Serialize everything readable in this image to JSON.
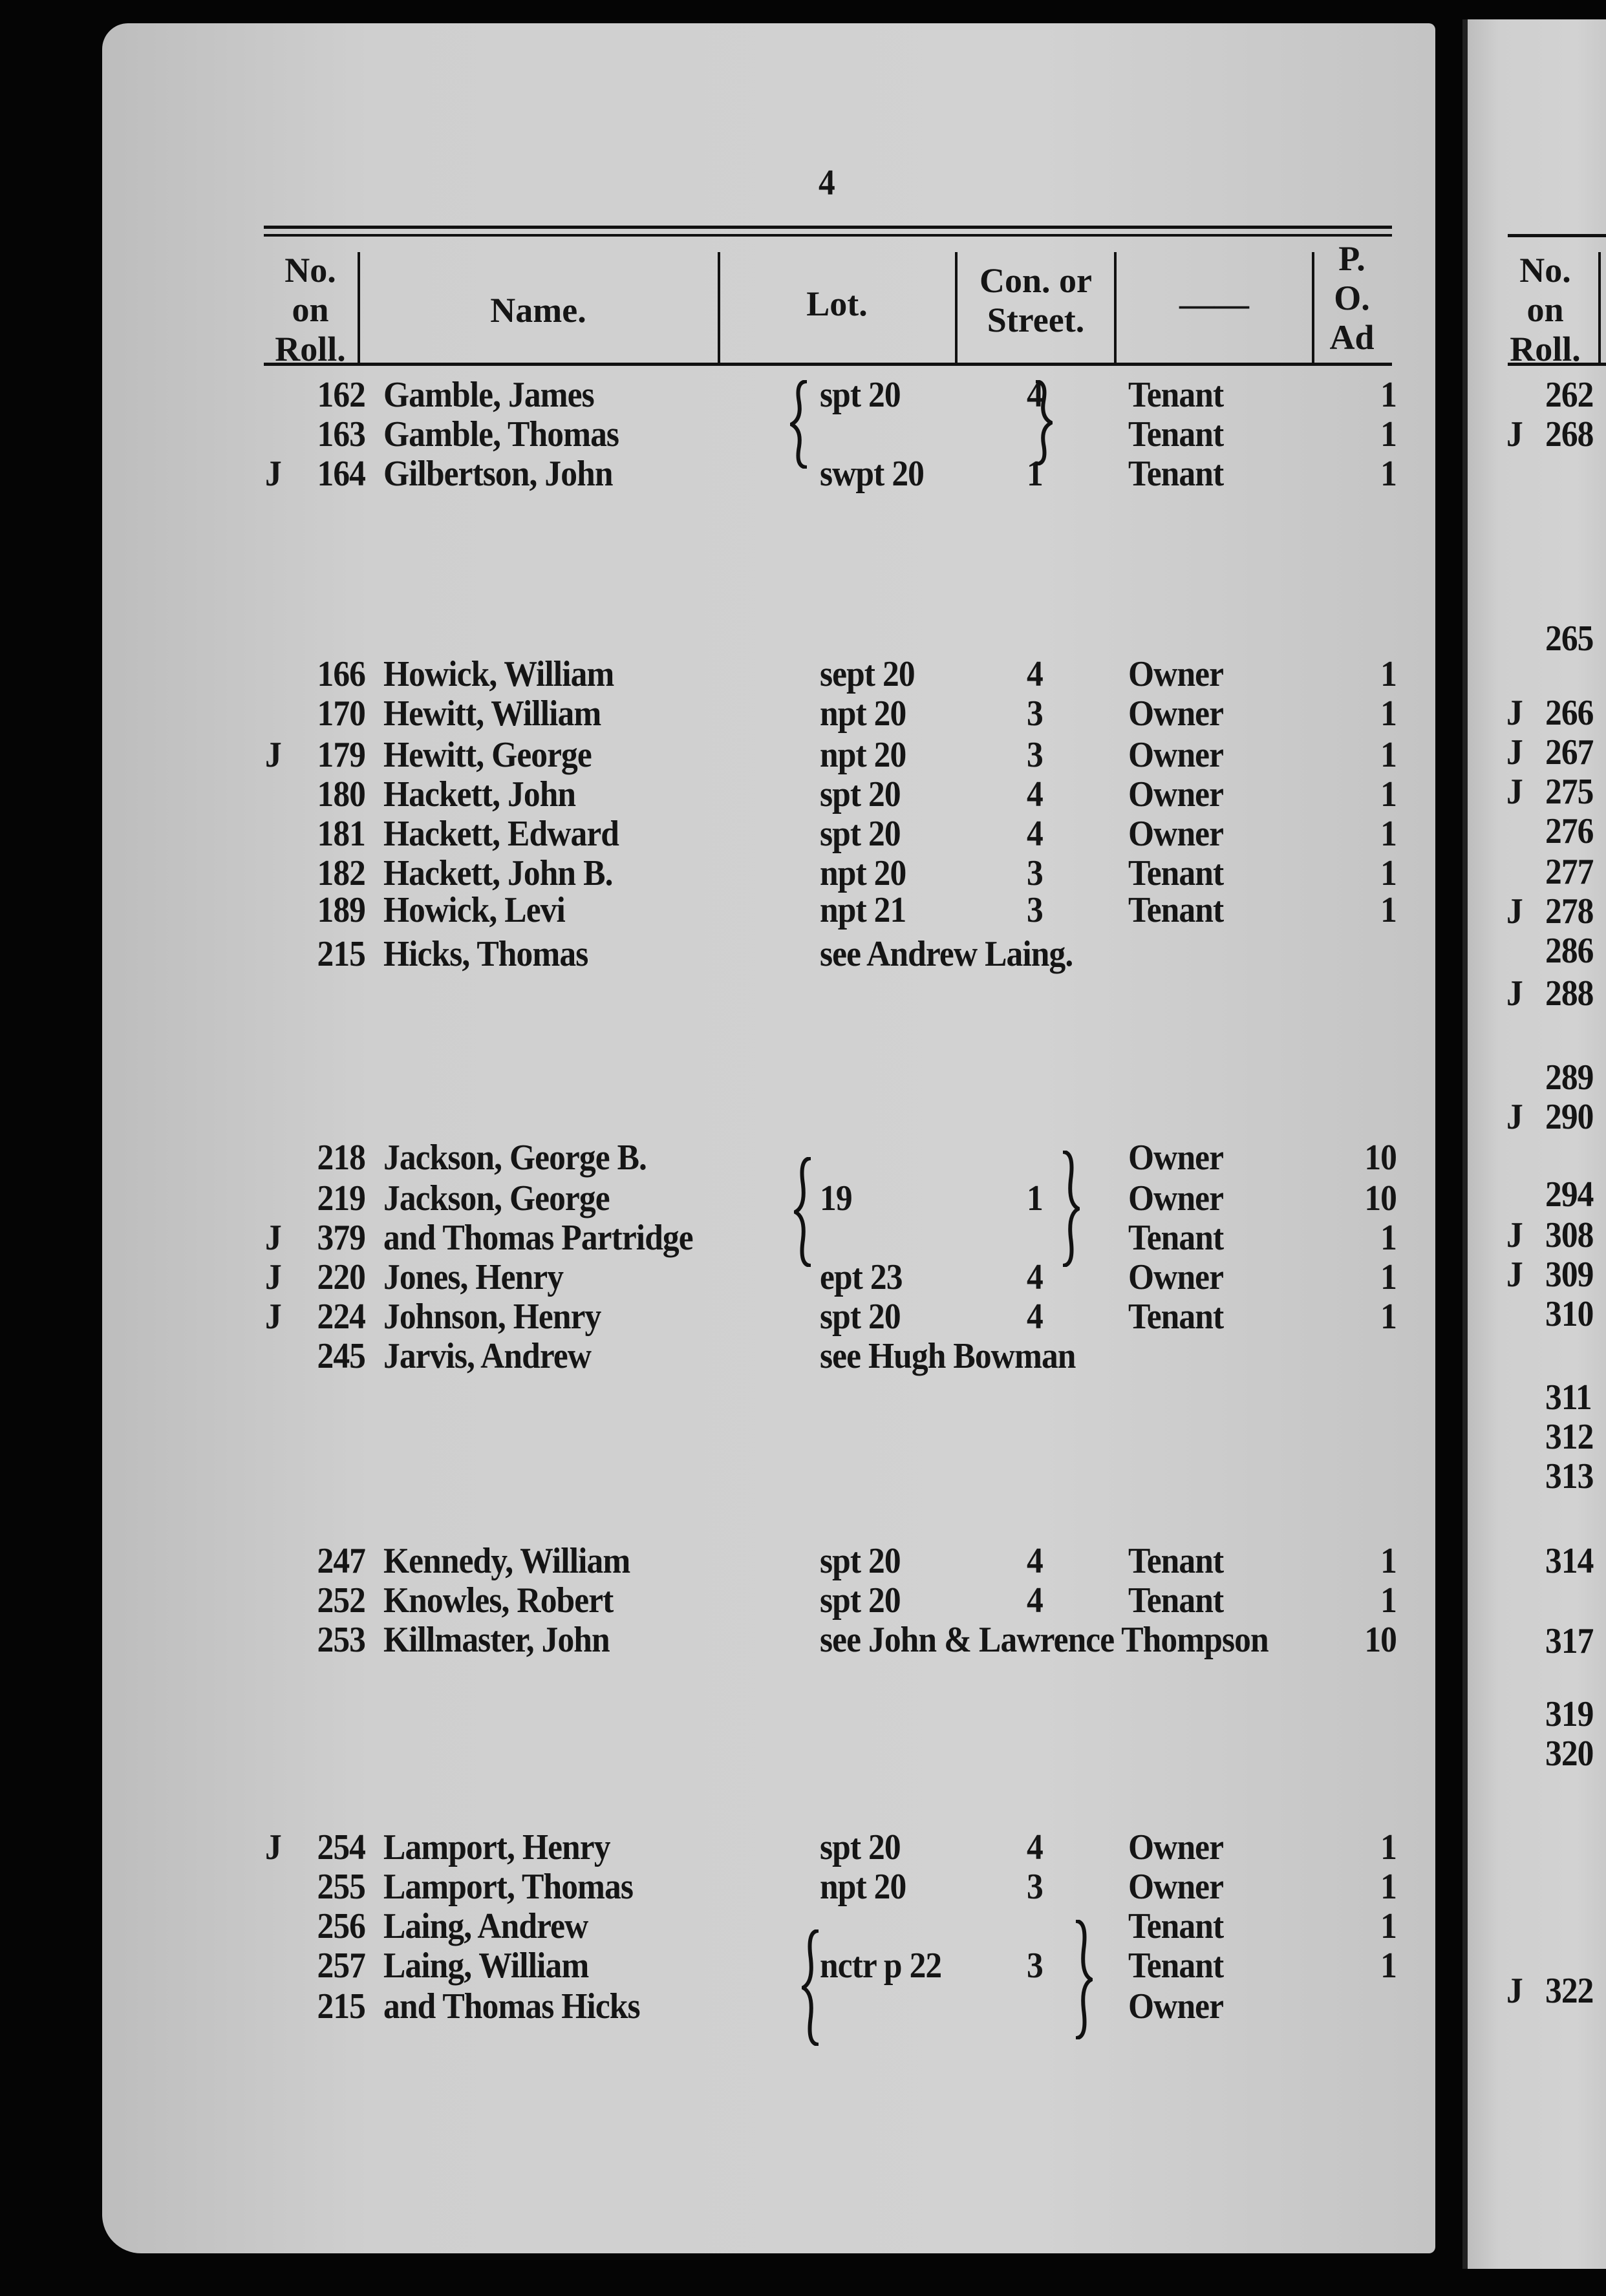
{
  "page_number": "4",
  "headers": {
    "no_on_roll": "No.\non\nRoll.",
    "name": "Name.",
    "lot": "Lot.",
    "con": "Con. or\nStreet.",
    "blank": "——",
    "po": "P.\nO.\nAd"
  },
  "rows": [
    {
      "j": "",
      "no": "162",
      "name": "Gamble, James",
      "lot": "spt 20",
      "con": "4",
      "status": "Tenant",
      "po": "1"
    },
    {
      "j": "",
      "no": "163",
      "name": "Gamble, Thomas",
      "lot": "",
      "con": "",
      "status": "Tenant",
      "po": "1"
    },
    {
      "j": "J",
      "no": "164",
      "name": "Gilbertson, John",
      "lot": "swpt 20",
      "con": "1",
      "status": "Tenant",
      "po": "1"
    },
    {
      "j": "",
      "no": "166",
      "name": "Howick, William",
      "lot": "sept 20",
      "con": "4",
      "status": "Owner",
      "po": "1"
    },
    {
      "j": "",
      "no": "170",
      "name": "Hewitt, William",
      "lot": "npt 20",
      "con": "3",
      "status": "Owner",
      "po": "1"
    },
    {
      "j": "J",
      "no": "179",
      "name": "Hewitt, George",
      "lot": "npt 20",
      "con": "3",
      "status": "Owner",
      "po": "1"
    },
    {
      "j": "",
      "no": "180",
      "name": "Hackett, John",
      "lot": "spt 20",
      "con": "4",
      "status": "Owner",
      "po": "1"
    },
    {
      "j": "",
      "no": "181",
      "name": "Hackett, Edward",
      "lot": "spt 20",
      "con": "4",
      "status": "Owner",
      "po": "1"
    },
    {
      "j": "",
      "no": "182",
      "name": "Hackett, John B.",
      "lot": "npt 20",
      "con": "3",
      "status": "Tenant",
      "po": "1"
    },
    {
      "j": "",
      "no": "189",
      "name": "Howick, Levi",
      "lot": "npt 21",
      "con": "3",
      "status": "Tenant",
      "po": "1"
    },
    {
      "j": "",
      "no": "215",
      "name": "Hicks, Thomas",
      "lot": "see Andrew Laing.",
      "con": "",
      "status": "",
      "po": ""
    },
    {
      "j": "",
      "no": "218",
      "name": "Jackson, George B.",
      "lot": "",
      "con": "",
      "status": "Owner",
      "po": "10"
    },
    {
      "j": "",
      "no": "219",
      "name": "Jackson, George",
      "lot": "19",
      "con": "1",
      "status": "Owner",
      "po": "10"
    },
    {
      "j": "J",
      "no": "379",
      "name": "and Thomas Partridge",
      "lot": "",
      "con": "",
      "status": "Tenant",
      "po": "1"
    },
    {
      "j": "J",
      "no": "220",
      "name": "Jones, Henry",
      "lot": "ept 23",
      "con": "4",
      "status": "Owner",
      "po": "1"
    },
    {
      "j": "J",
      "no": "224",
      "name": "Johnson, Henry",
      "lot": "spt 20",
      "con": "4",
      "status": "Tenant",
      "po": "1"
    },
    {
      "j": "",
      "no": "245",
      "name": "Jarvis, Andrew",
      "lot": "see Hugh Bowman",
      "con": "",
      "status": "",
      "po": ""
    },
    {
      "j": "",
      "no": "247",
      "name": "Kennedy, William",
      "lot": "spt 20",
      "con": "4",
      "status": "Tenant",
      "po": "1"
    },
    {
      "j": "",
      "no": "252",
      "name": "Knowles, Robert",
      "lot": "spt 20",
      "con": "4",
      "status": "Tenant",
      "po": "1"
    },
    {
      "j": "",
      "no": "253",
      "name": "Killmaster, John",
      "lot": "see John & Lawrence Thompson",
      "con": "",
      "status": "",
      "po": "10"
    },
    {
      "j": "J",
      "no": "254",
      "name": "Lamport, Henry",
      "lot": "spt 20",
      "con": "4",
      "status": "Owner",
      "po": "1"
    },
    {
      "j": "",
      "no": "255",
      "name": "Lamport, Thomas",
      "lot": "npt 20",
      "con": "3",
      "status": "Owner",
      "po": "1"
    },
    {
      "j": "",
      "no": "256",
      "name": "Laing, Andrew",
      "lot": "",
      "con": "",
      "status": "Tenant",
      "po": "1"
    },
    {
      "j": "",
      "no": "257",
      "name": "Laing, William",
      "lot": "nctr p 22",
      "con": "3",
      "status": "Tenant",
      "po": "1"
    },
    {
      "j": "",
      "no": "215",
      "name": "and Thomas Hicks",
      "lot": "",
      "con": "",
      "status": "Owner",
      "po": ""
    }
  ],
  "right_page": {
    "header": "No.\non\nRoll.",
    "rows": [
      {
        "j": "",
        "no": "262"
      },
      {
        "j": "J",
        "no": "268"
      },
      {
        "j": "",
        "no": "265"
      },
      {
        "j": "J",
        "no": "266"
      },
      {
        "j": "J",
        "no": "267"
      },
      {
        "j": "J",
        "no": "275"
      },
      {
        "j": "",
        "no": "276"
      },
      {
        "j": "",
        "no": "277"
      },
      {
        "j": "J",
        "no": "278"
      },
      {
        "j": "",
        "no": "286"
      },
      {
        "j": "J",
        "no": "288"
      },
      {
        "j": "",
        "no": "289"
      },
      {
        "j": "J",
        "no": "290"
      },
      {
        "j": "",
        "no": "294"
      },
      {
        "j": "J",
        "no": "308"
      },
      {
        "j": "J",
        "no": "309"
      },
      {
        "j": "",
        "no": "310"
      },
      {
        "j": "",
        "no": "311"
      },
      {
        "j": "",
        "no": "312"
      },
      {
        "j": "",
        "no": "313"
      },
      {
        "j": "",
        "no": "314"
      },
      {
        "j": "",
        "no": "317"
      },
      {
        "j": "",
        "no": "319"
      },
      {
        "j": "",
        "no": "320"
      },
      {
        "j": "J",
        "no": "322"
      }
    ]
  }
}
